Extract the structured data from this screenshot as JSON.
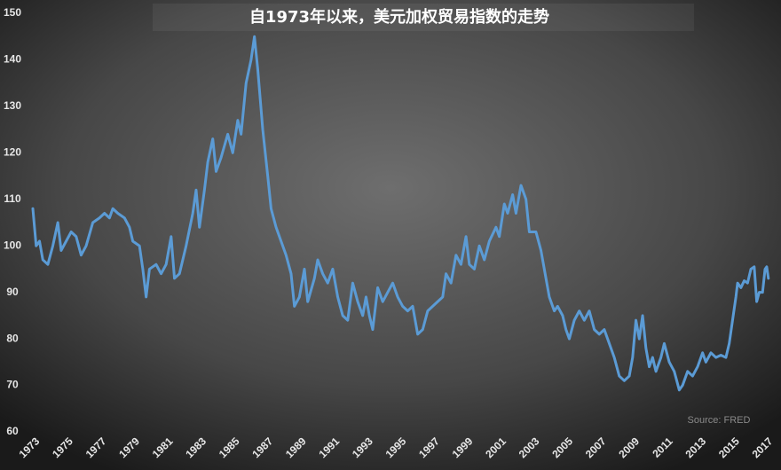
{
  "chart_data": {
    "type": "line",
    "title": "自1973年以来，美元加权贸易指数的走势",
    "annotation": "Source: FRED",
    "x": [
      1973.0,
      1973.2,
      1973.4,
      1973.6,
      1973.9,
      1974.2,
      1974.5,
      1974.7,
      1975.0,
      1975.3,
      1975.6,
      1975.9,
      1976.2,
      1976.6,
      1977.0,
      1977.3,
      1977.6,
      1977.8,
      1978.1,
      1978.5,
      1978.8,
      1979.0,
      1979.4,
      1979.6,
      1979.8,
      1980.0,
      1980.4,
      1980.7,
      1981.0,
      1981.3,
      1981.5,
      1981.8,
      1982.2,
      1982.6,
      1982.8,
      1983.0,
      1983.3,
      1983.5,
      1983.8,
      1984.0,
      1984.3,
      1984.7,
      1985.0,
      1985.3,
      1985.5,
      1985.8,
      1986.1,
      1986.3,
      1986.5,
      1986.8,
      1987.1,
      1987.3,
      1987.6,
      1987.9,
      1988.2,
      1988.5,
      1988.7,
      1989.0,
      1989.3,
      1989.5,
      1989.9,
      1990.1,
      1990.4,
      1990.7,
      1991.0,
      1991.3,
      1991.6,
      1991.9,
      1992.2,
      1992.5,
      1992.8,
      1993.0,
      1993.2,
      1993.4,
      1993.7,
      1994.0,
      1994.3,
      1994.6,
      1994.9,
      1995.2,
      1995.5,
      1995.8,
      1996.1,
      1996.4,
      1996.7,
      1997.0,
      1997.3,
      1997.6,
      1997.8,
      1998.1,
      1998.4,
      1998.7,
      1999.0,
      1999.2,
      1999.5,
      1999.8,
      2000.1,
      2000.4,
      2000.8,
      2001.0,
      2001.3,
      2001.5,
      2001.8,
      2002.0,
      2002.3,
      2002.6,
      2002.8,
      2003.2,
      2003.5,
      2003.8,
      2004.0,
      2004.3,
      2004.5,
      2004.8,
      2005.0,
      2005.2,
      2005.5,
      2005.8,
      2006.1,
      2006.4,
      2006.7,
      2007.0,
      2007.3,
      2007.6,
      2007.9,
      2008.2,
      2008.5,
      2008.8,
      2009.0,
      2009.2,
      2009.4,
      2009.6,
      2009.8,
      2010.0,
      2010.2,
      2010.4,
      2010.7,
      2010.9,
      2011.2,
      2011.5,
      2011.8,
      2012.0,
      2012.3,
      2012.6,
      2012.9,
      2013.2,
      2013.4,
      2013.7,
      2014.0,
      2014.3,
      2014.6,
      2014.8,
      2015.0,
      2015.2,
      2015.3,
      2015.5,
      2015.7,
      2015.9,
      2016.1,
      2016.3,
      2016.45,
      2016.6,
      2016.8,
      2016.95,
      2017.05,
      2017.15
    ],
    "values": [
      108,
      100,
      101,
      97,
      96,
      100,
      105,
      99,
      101,
      103,
      102,
      98,
      100,
      105,
      106,
      107,
      106,
      108,
      107,
      106,
      104,
      101,
      100,
      95,
      89,
      95,
      96,
      94,
      96,
      102,
      93,
      94,
      100,
      107,
      112,
      104,
      112,
      118,
      123,
      116,
      119,
      124,
      120,
      127,
      124,
      135,
      140,
      145,
      138,
      125,
      115,
      108,
      104,
      101,
      98,
      94,
      87,
      89,
      95,
      88,
      93,
      97,
      94,
      92,
      95,
      89,
      85,
      84,
      92,
      88,
      85,
      89,
      85,
      82,
      91,
      88,
      90,
      92,
      89,
      87,
      86,
      87,
      81,
      82,
      86,
      87,
      88,
      89,
      94,
      92,
      98,
      96,
      102,
      96,
      95,
      100,
      97,
      101,
      104,
      102,
      109,
      107,
      111,
      107,
      113,
      110,
      103,
      103,
      99,
      93,
      89,
      86,
      87,
      85,
      82,
      80,
      84,
      86,
      84,
      86,
      82,
      81,
      82,
      79,
      76,
      72,
      71,
      72,
      76,
      84,
      80,
      85,
      78,
      74,
      76,
      73,
      76,
      79,
      75,
      73,
      69,
      70,
      73,
      72,
      74,
      77,
      75,
      77,
      76,
      76.5,
      76,
      79,
      84,
      89,
      92,
      91,
      92.5,
      92,
      95,
      95.5,
      88,
      90,
      90,
      95,
      95.5,
      93
    ],
    "color": "#5b9bd5",
    "xlim": [
      1973,
      2017.3
    ],
    "xticks": [
      1973,
      1975,
      1977,
      1979,
      1981,
      1983,
      1985,
      1987,
      1989,
      1991,
      1993,
      1995,
      1997,
      1999,
      2001,
      2003,
      2005,
      2007,
      2009,
      2011,
      2013,
      2015,
      2017
    ],
    "ylim": [
      60,
      150
    ],
    "yticks": [
      60,
      70,
      80,
      90,
      100,
      110,
      120,
      130,
      140,
      150
    ],
    "grid": false
  }
}
